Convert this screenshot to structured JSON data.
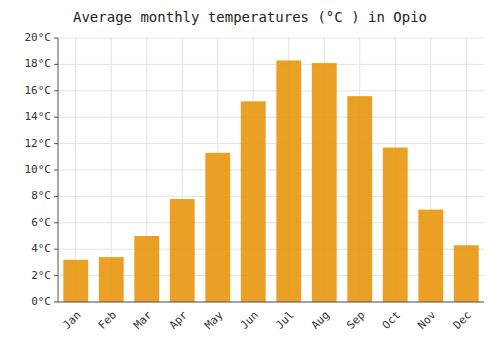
{
  "chart_data": {
    "type": "bar",
    "title": "Average monthly temperatures (°C ) in Opio",
    "categories": [
      "Jan",
      "Feb",
      "Mar",
      "Apr",
      "May",
      "Jun",
      "Jul",
      "Aug",
      "Sep",
      "Oct",
      "Nov",
      "Dec"
    ],
    "values": [
      3.2,
      3.4,
      5.0,
      7.8,
      11.3,
      15.2,
      18.3,
      18.1,
      15.6,
      11.7,
      7.0,
      4.3
    ],
    "color": "#E8960C",
    "ylim": [
      0,
      20
    ],
    "yticks": [
      {
        "value": 0,
        "label": "0°C"
      },
      {
        "value": 2,
        "label": "2°C"
      },
      {
        "value": 4,
        "label": "4°C"
      },
      {
        "value": 6,
        "label": "6°C"
      },
      {
        "value": 8,
        "label": "8°C"
      },
      {
        "value": 10,
        "label": "10°C"
      },
      {
        "value": 12,
        "label": "12°C"
      },
      {
        "value": 14,
        "label": "14°C"
      },
      {
        "value": 16,
        "label": "16°C"
      },
      {
        "value": 18,
        "label": "18°C"
      },
      {
        "value": 20,
        "label": "20°C"
      }
    ],
    "grid": true
  }
}
